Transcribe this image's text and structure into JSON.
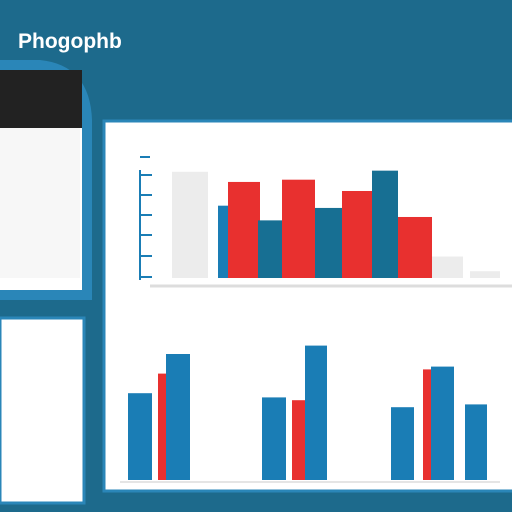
{
  "header": {
    "title": "Phogophb"
  },
  "charts": [
    {
      "type": "bar",
      "ylim": [
        0,
        100
      ],
      "values": [
        94,
        64,
        85,
        51,
        87,
        62,
        77,
        95,
        54,
        19,
        6
      ],
      "colors": [
        "#ececec",
        "#1a7db5",
        "#e8302f",
        "#176f93",
        "#e8302f",
        "#176f93",
        "#e8302f",
        "#176f93",
        "#e8302f",
        "#ececec",
        "#ececec"
      ]
    },
    {
      "type": "bar",
      "ylim": [
        0,
        100
      ],
      "values": [
        62,
        76,
        90,
        59,
        57,
        96,
        52,
        79,
        81,
        54
      ],
      "colors": [
        "#1a7db5",
        "#e8302f",
        "#1a7db5",
        "#1a7db5",
        "#e8302f",
        "#1a7db5",
        "#1a7db5",
        "#e8302f",
        "#1a7db5",
        "#1a7db5"
      ]
    }
  ]
}
